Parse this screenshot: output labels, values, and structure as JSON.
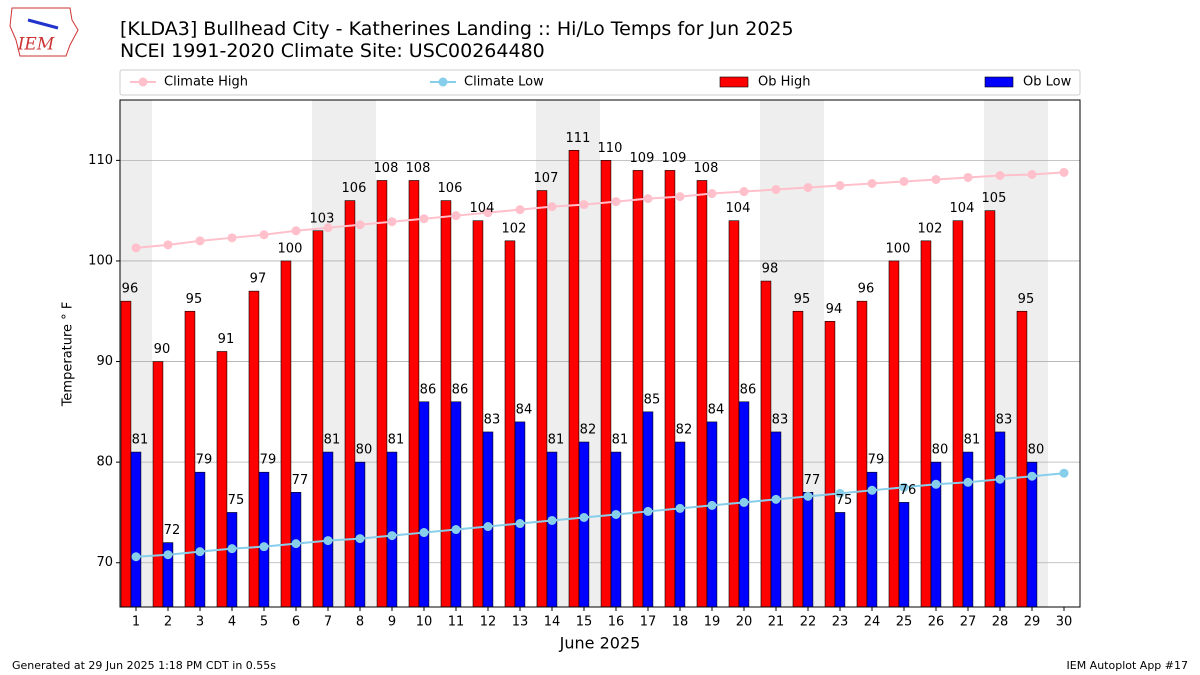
{
  "chart_data": {
    "type": "bar",
    "title": "[KLDA3] Bullhead City - Katherines Landing :: Hi/Lo Temps for Jun 2025",
    "subtitle": "NCEI 1991-2020 Climate Site: USC00264480",
    "xlabel": "June 2025",
    "ylabel": "Temperature ° F",
    "x": [
      1,
      2,
      3,
      4,
      5,
      6,
      7,
      8,
      9,
      10,
      11,
      12,
      13,
      14,
      15,
      16,
      17,
      18,
      19,
      20,
      21,
      22,
      23,
      24,
      25,
      26,
      27,
      28,
      29,
      30
    ],
    "series": [
      {
        "name": "Climate High",
        "type": "line",
        "color": "#ffc0cb",
        "values": [
          101.3,
          101.6,
          102.0,
          102.3,
          102.6,
          103.0,
          103.3,
          103.6,
          103.9,
          104.2,
          104.5,
          104.8,
          105.1,
          105.4,
          105.6,
          105.9,
          106.2,
          106.4,
          106.7,
          106.9,
          107.1,
          107.3,
          107.5,
          107.7,
          107.9,
          108.1,
          108.3,
          108.5,
          108.6,
          108.8
        ]
      },
      {
        "name": "Climate Low",
        "type": "line",
        "color": "#87ceeb",
        "values": [
          70.6,
          70.8,
          71.1,
          71.4,
          71.6,
          71.9,
          72.2,
          72.4,
          72.7,
          73.0,
          73.3,
          73.6,
          73.9,
          74.2,
          74.5,
          74.8,
          75.1,
          75.4,
          75.7,
          76.0,
          76.3,
          76.6,
          76.9,
          77.2,
          77.5,
          77.8,
          78.0,
          78.3,
          78.6,
          78.9
        ]
      },
      {
        "name": "Ob High",
        "type": "bar",
        "color": "#ff0000",
        "values": [
          96,
          90,
          95,
          91,
          97,
          100,
          103,
          106,
          108,
          108,
          106,
          104,
          102,
          107,
          111,
          110,
          109,
          109,
          108,
          104,
          98,
          95,
          94,
          96,
          100,
          102,
          104,
          105,
          95,
          null
        ]
      },
      {
        "name": "Ob Low",
        "type": "bar",
        "color": "#0000ff",
        "values": [
          81,
          72,
          79,
          75,
          79,
          77,
          81,
          80,
          81,
          86,
          86,
          83,
          84,
          81,
          82,
          81,
          85,
          82,
          84,
          86,
          83,
          77,
          75,
          79,
          76,
          80,
          81,
          83,
          80,
          null
        ]
      }
    ],
    "shaded_x": [
      1,
      7,
      8,
      14,
      15,
      21,
      22,
      28,
      29
    ],
    "shade_color": "#eeeeee",
    "xlim": [
      0.5,
      30.5
    ],
    "xticks": [
      1,
      2,
      3,
      4,
      5,
      6,
      7,
      8,
      9,
      10,
      11,
      12,
      13,
      14,
      15,
      16,
      17,
      18,
      19,
      20,
      21,
      22,
      23,
      24,
      25,
      26,
      27,
      28,
      29,
      30
    ],
    "ylim": [
      65.6,
      116
    ],
    "yticks": [
      70,
      80,
      90,
      100,
      110
    ],
    "grid": true
  },
  "logo_text": "IEM",
  "footer_left": "Generated at 29 Jun 2025 1:18 PM CDT in 0.55s",
  "footer_right": "IEM Autoplot App #17"
}
